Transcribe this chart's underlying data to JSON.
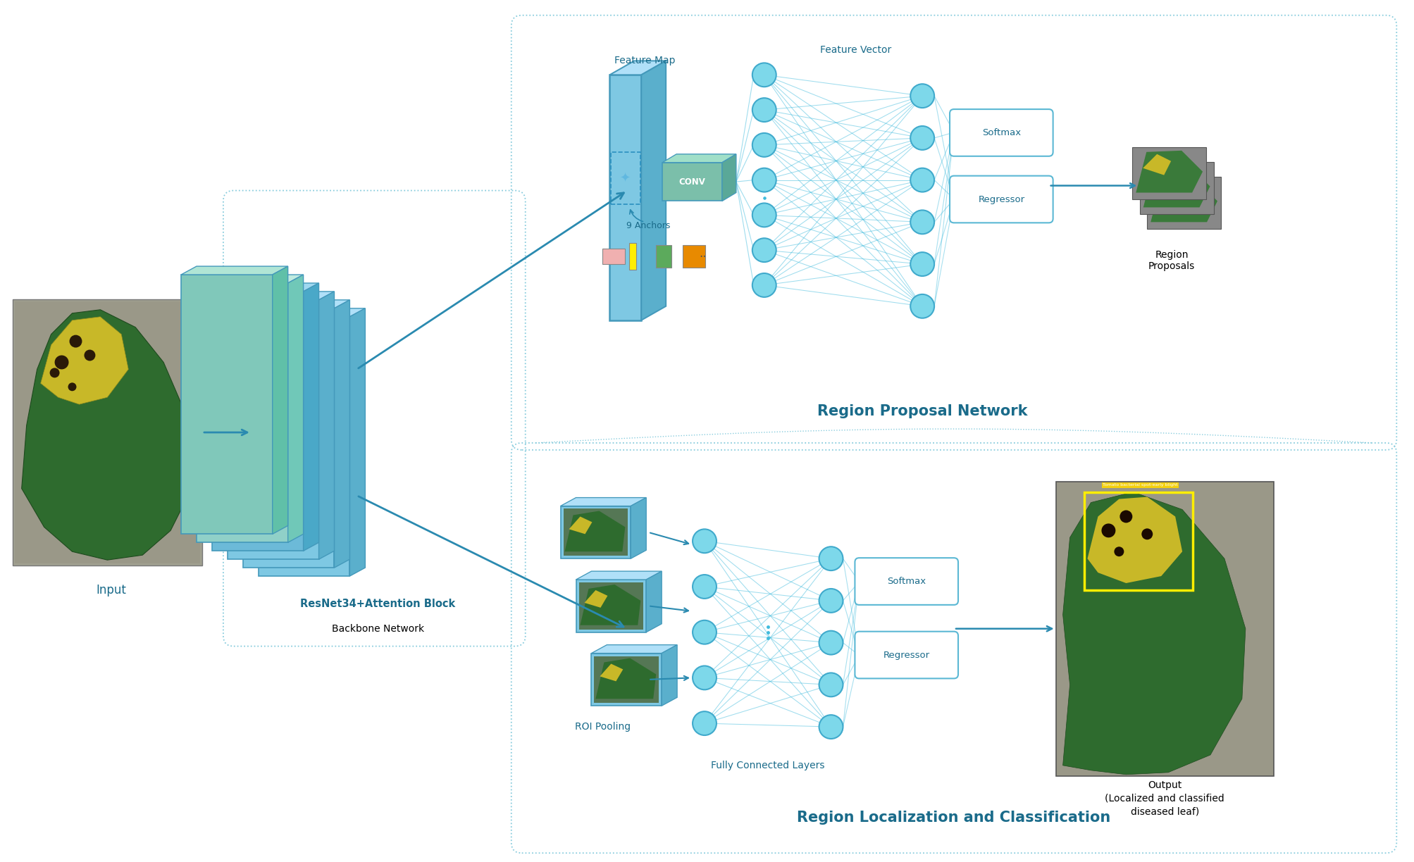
{
  "bg_color": "#ffffff",
  "light_blue": "#7EC8E3",
  "med_blue": "#4DA6CC",
  "teal_conv": "#6BBFAA",
  "text_blue": "#1A6B8A",
  "arrow_color": "#2A8AB0",
  "node_color": "#7DD8EA",
  "node_edge": "#40AACC",
  "rpn_label": "Region Proposal Network",
  "rlc_label": "Region Localization and Classification",
  "backbone_bold": "ResNet34+Attention Block",
  "backbone_sub": "Backbone Network",
  "input_label": "Input",
  "feature_map_label": "Feature Map",
  "feature_vector_label": "Feature Vector",
  "anchors_label": "9 Anchors",
  "conv_label": "CONV",
  "softmax_label1": "Softmax",
  "regressor_label1": "Regressor",
  "region_proposals_label": "Region\nProposals",
  "roi_label": "ROI Pooling",
  "fc_label": "Fully Connected Layers",
  "softmax_label2": "Softmax",
  "regressor_label2": "Regressor",
  "output_label": "Output\n(Localized and classified\ndiseased leaf)"
}
